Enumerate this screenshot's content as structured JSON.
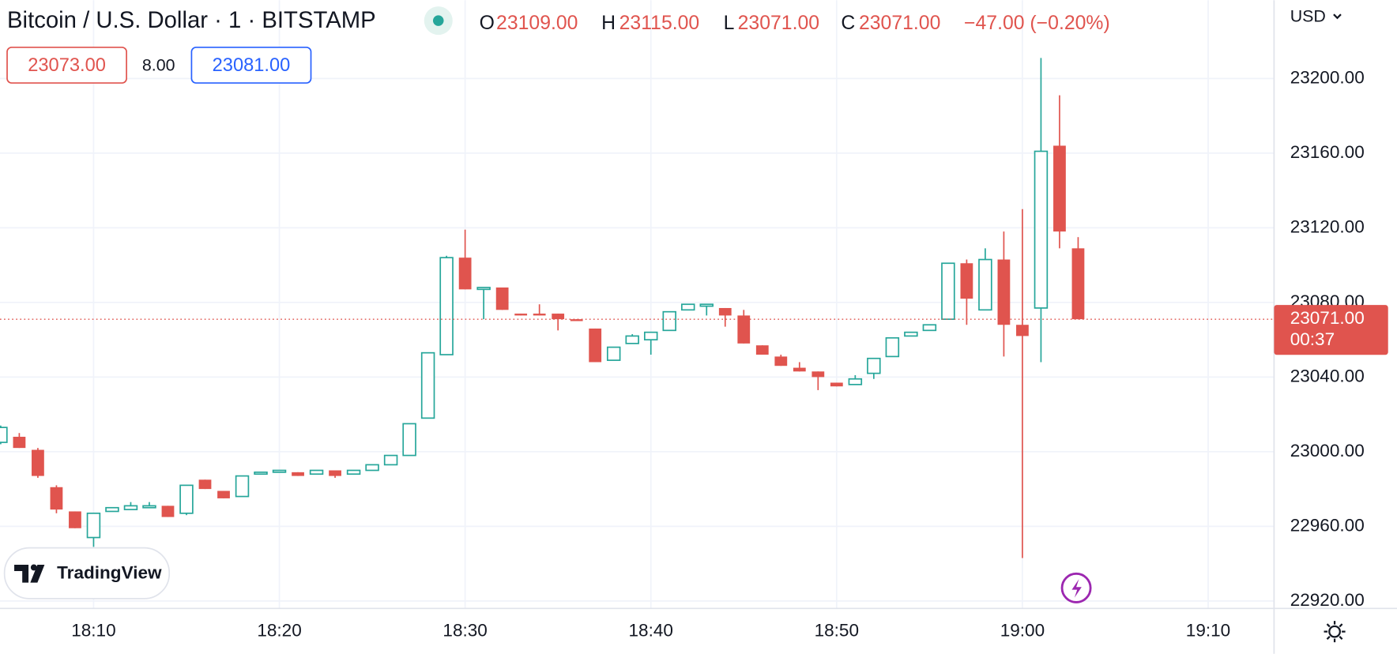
{
  "header": {
    "symbol": "Bitcoin / U.S. Dollar · 1 · BITSTAMP",
    "ohlc": [
      {
        "key": "O",
        "value": "23109.00"
      },
      {
        "key": "H",
        "value": "23115.00"
      },
      {
        "key": "L",
        "value": "23071.00"
      },
      {
        "key": "C",
        "value": "23071.00"
      }
    ],
    "change": "−47.00 (−0.20%)"
  },
  "order": {
    "sell": "23073.00",
    "spread": "8.00",
    "buy": "23081.00"
  },
  "currency": "USD",
  "countdown": "00:37",
  "brand": "TradingView",
  "chart_data": {
    "type": "candlestick",
    "categories": [
      null,
      null,
      null,
      null,
      null,
      "18:10",
      null,
      null,
      null,
      null,
      null,
      null,
      null,
      null,
      null,
      "18:20",
      null,
      null,
      null,
      null,
      null,
      null,
      null,
      null,
      null,
      "18:30",
      null,
      null,
      null,
      null,
      null,
      null,
      null,
      null,
      null,
      "18:40",
      null,
      null,
      null,
      null,
      null,
      null,
      null,
      null,
      null,
      "18:50",
      null,
      null,
      null,
      null,
      null,
      null,
      null,
      null,
      null,
      "19:00",
      null,
      null,
      null,
      null,
      null,
      null,
      null,
      null,
      null,
      "19:10",
      null,
      null,
      null
    ],
    "open": [
      23005,
      23008,
      23001,
      22981,
      22968,
      22954,
      22968,
      22969,
      22970,
      22971,
      22967,
      22985,
      22979,
      22976,
      22988,
      22989,
      22989,
      22988,
      22990,
      22988,
      22990,
      22993,
      22998,
      23018,
      23052,
      23104,
      23087,
      23088,
      23074,
      23074,
      23074,
      23071,
      23066,
      23049,
      23058,
      23060,
      23065,
      23076,
      23078,
      23077,
      23073,
      23057,
      23051,
      23045,
      23043,
      23037,
      23036,
      23042,
      23051,
      23062,
      23065,
      23071,
      23101,
      23076,
      23103,
      23068,
      23077,
      23164,
      23109,
      null,
      null,
      null,
      null,
      null,
      null,
      null,
      null,
      null,
      null
    ],
    "high": [
      23014,
      23010,
      23002,
      22982,
      22968,
      22967,
      22970,
      22973,
      22973,
      22971,
      22982,
      22985,
      22979,
      22987,
      22989,
      22990,
      22989,
      22990,
      22990,
      22990,
      22993,
      22998,
      23015,
      23053,
      23105,
      23119,
      23088,
      23088,
      23074,
      23079,
      23074,
      23071,
      23066,
      23056,
      23063,
      23064,
      23075,
      23079,
      23079,
      23077,
      23076,
      23057,
      23052,
      23048,
      23043,
      23037,
      23041,
      23050,
      23061,
      23064,
      23068,
      23101,
      23103,
      23109,
      23118,
      23130,
      23211,
      23191,
      23115,
      null,
      null,
      null,
      null,
      null,
      null,
      null,
      null,
      null,
      null
    ],
    "low": [
      23004,
      23002,
      22986,
      22967,
      22959,
      22949,
      22968,
      22969,
      22970,
      22965,
      22966,
      22980,
      22975,
      22976,
      22988,
      22989,
      22987,
      22988,
      22986,
      22988,
      22990,
      22993,
      22998,
      23018,
      23052,
      23087,
      23071,
      23076,
      23073,
      23073,
      23065,
      23070,
      23048,
      23049,
      23058,
      23052,
      23065,
      23076,
      23073,
      23067,
      23058,
      23052,
      23046,
      23043,
      23033,
      23035,
      23036,
      23039,
      23051,
      23062,
      23065,
      23071,
      23068,
      23076,
      23051,
      22943,
      23048,
      23109,
      23071,
      null,
      null,
      null,
      null,
      null,
      null,
      null,
      null,
      null,
      null
    ],
    "close": [
      23013,
      23002,
      22987,
      22969,
      22959,
      22967,
      22970,
      22971,
      22971,
      22965,
      22982,
      22980,
      22975,
      22987,
      22989,
      22990,
      22987,
      22990,
      22987,
      22990,
      22993,
      22998,
      23015,
      23053,
      23104,
      23087,
      23088,
      23076,
      23073,
      23073,
      23071,
      23070,
      23048,
      23056,
      23062,
      23064,
      23075,
      23079,
      23079,
      23073,
      23058,
      23052,
      23046,
      23043,
      23040,
      23035,
      23039,
      23050,
      23061,
      23064,
      23068,
      23101,
      23082,
      23103,
      23068,
      23062,
      23161,
      23118,
      23071,
      null,
      null,
      null,
      null,
      null,
      null,
      null,
      null,
      null,
      null
    ],
    "up_color": "#26a69a",
    "down_color": "#e0544e",
    "ylim": [
      22916,
      23242
    ],
    "yticks": [
      {
        "value": 22920,
        "label": "22920.00"
      },
      {
        "value": 22960,
        "label": "22960.00"
      },
      {
        "value": 23000,
        "label": "23000.00"
      },
      {
        "value": 23040,
        "label": "23040.00"
      },
      {
        "value": 23080,
        "label": "23080.00"
      },
      {
        "value": 23120,
        "label": "23120.00"
      },
      {
        "value": 23160,
        "label": "23160.00"
      },
      {
        "value": 23200,
        "label": "23200.00"
      }
    ],
    "last_price": {
      "value": 23071,
      "label": "23071.00"
    },
    "grid": true
  }
}
